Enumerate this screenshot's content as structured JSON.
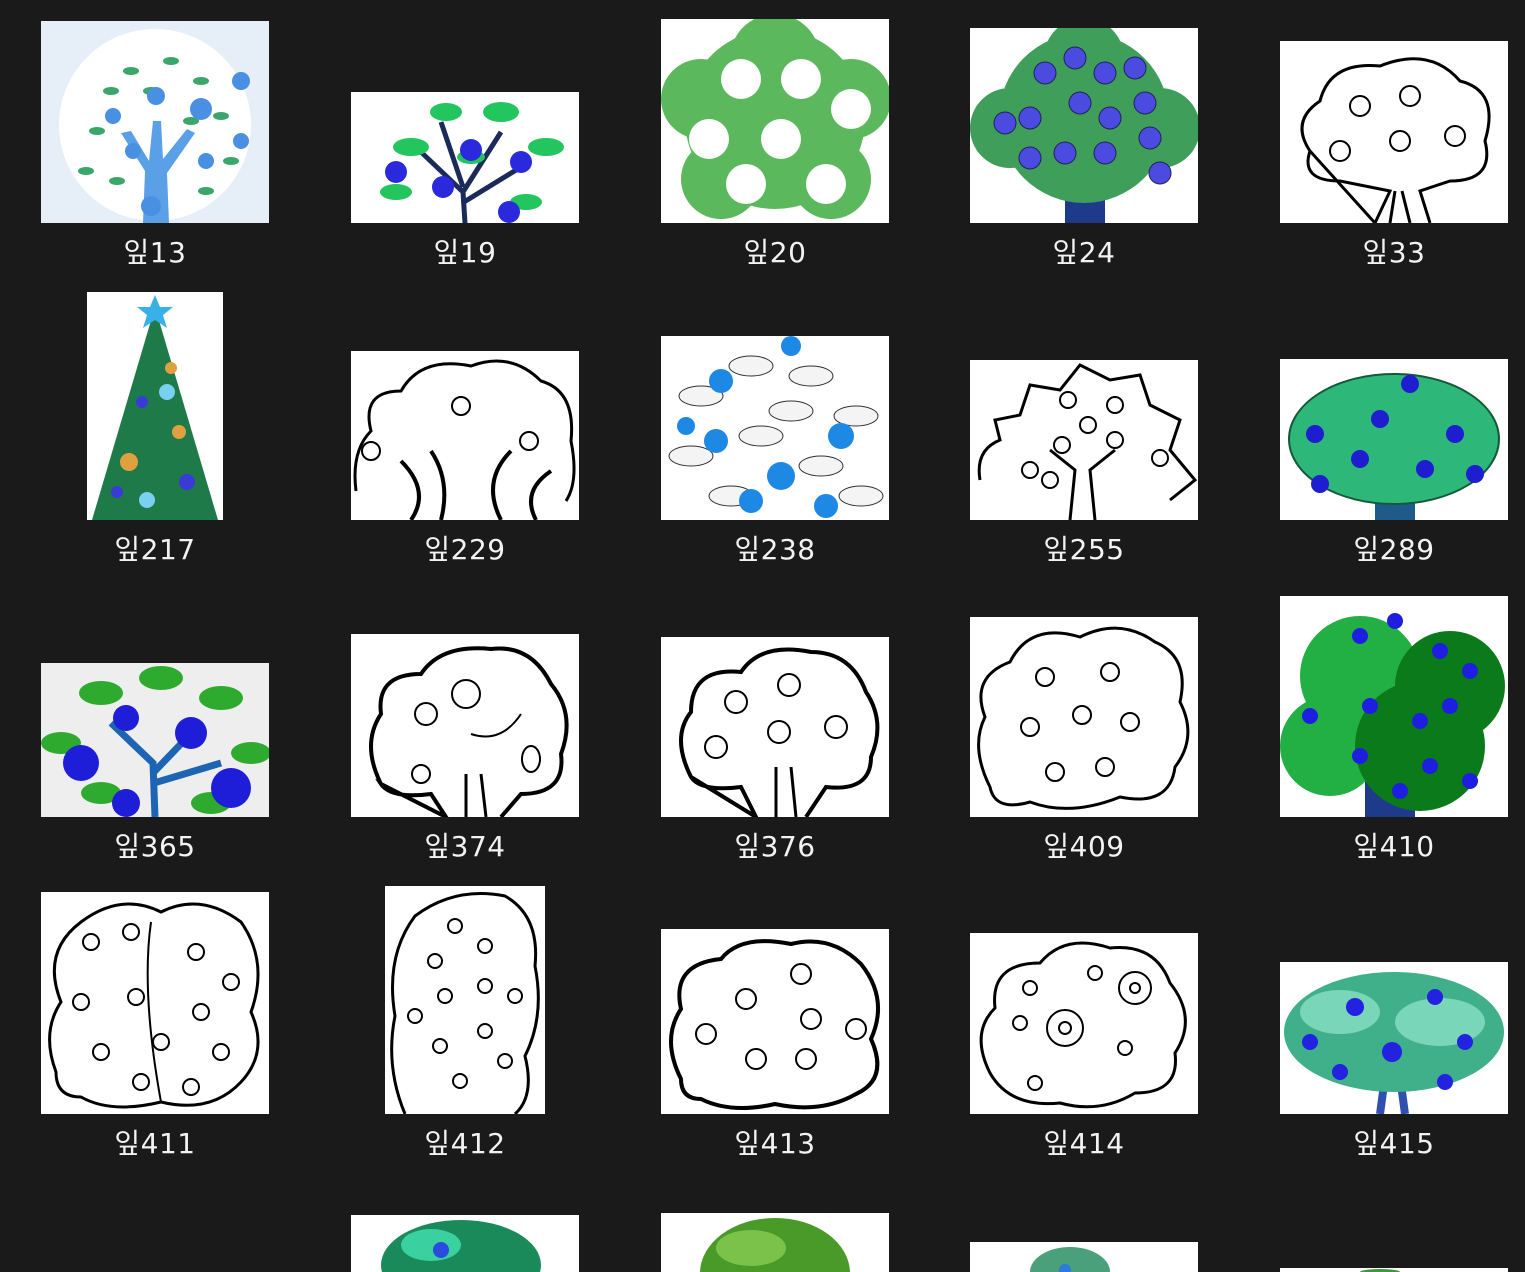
{
  "accent_color": "#1a1a1a",
  "caption_color": "#f2f2f2",
  "files": [
    {
      "name": "잎13",
      "art": "blue-apple-tree"
    },
    {
      "name": "잎19",
      "art": "blue-apple-branch"
    },
    {
      "name": "잎20",
      "art": "green-tree-white-circles"
    },
    {
      "name": "잎24",
      "art": "cartoon-tree-blue-apples"
    },
    {
      "name": "잎33",
      "art": "outline-apple-tree"
    },
    {
      "name": "잎217",
      "art": "christmas-tree"
    },
    {
      "name": "잎229",
      "art": "outline-tree"
    },
    {
      "name": "잎238",
      "art": "leafy-tree-blue-fruit"
    },
    {
      "name": "잎255",
      "art": "outline-spiky-apple-tree"
    },
    {
      "name": "잎289",
      "art": "green-bush-blue-apples"
    },
    {
      "name": "잎365",
      "art": "branch-blue-apples"
    },
    {
      "name": "잎374",
      "art": "outline-fruit-tree"
    },
    {
      "name": "잎376",
      "art": "outline-apple-tree"
    },
    {
      "name": "잎409",
      "art": "outline-cloud-tree"
    },
    {
      "name": "잎410",
      "art": "green-tree-blue-fruit"
    },
    {
      "name": "잎411",
      "art": "outline-double-tree"
    },
    {
      "name": "잎412",
      "art": "outline-tall-tree"
    },
    {
      "name": "잎413",
      "art": "outline-cloud-tree"
    },
    {
      "name": "잎414",
      "art": "outline-flower-tree"
    },
    {
      "name": "잎415",
      "art": "green-bush-blue-fruit"
    },
    {
      "name": "",
      "art": "green-bush-partial"
    },
    {
      "name": "",
      "art": "green-tree-partial"
    },
    {
      "name": "",
      "art": "green-bush-partial"
    },
    {
      "name": "",
      "art": "green-bush-partial"
    }
  ]
}
